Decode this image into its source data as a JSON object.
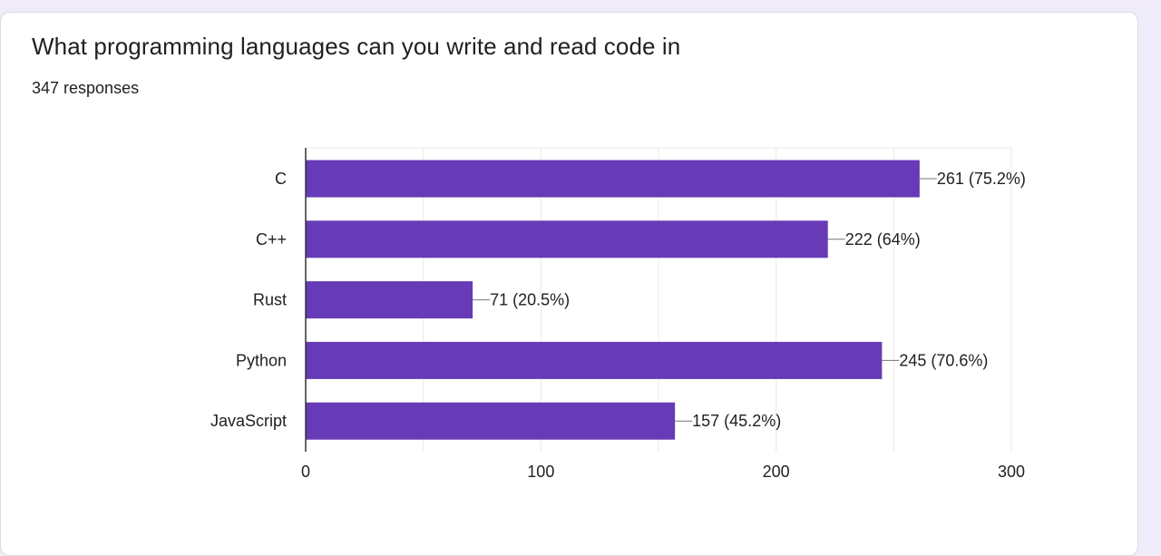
{
  "question": {
    "title": "What programming languages can you write and read code in",
    "responses": "347 responses"
  },
  "colors": {
    "bar": "#673ab7",
    "page_background": "#f0ebf8",
    "card_background": "#ffffff",
    "grid": "#e8e8e8",
    "axis": "#333333",
    "text": "#202124"
  },
  "chart_data": {
    "type": "bar",
    "orientation": "horizontal",
    "categories": [
      "C",
      "C++",
      "Rust",
      "Python",
      "JavaScript"
    ],
    "values": [
      261,
      222,
      71,
      245,
      157
    ],
    "data_labels": [
      "261 (75.2%)",
      "222 (64%)",
      "71 (20.5%)",
      "245 (70.6%)",
      "157 (45.2%)"
    ],
    "xlim": [
      0,
      300
    ],
    "x_ticks": [
      0,
      100,
      200,
      300
    ],
    "grid": true,
    "legend": "none"
  }
}
